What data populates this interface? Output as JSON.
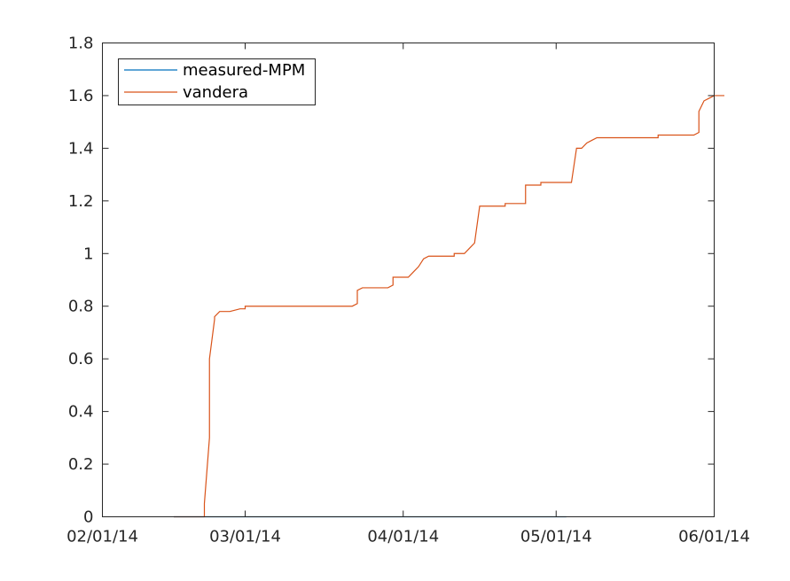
{
  "chart_data": {
    "type": "line",
    "title": "",
    "xlabel": "",
    "ylabel": "",
    "xlim": [
      "02/01/14",
      "06/01/14"
    ],
    "ylim": [
      0,
      1.8
    ],
    "x_ticks": [
      "02/01/14",
      "03/01/14",
      "04/01/14",
      "05/01/14",
      "06/01/14"
    ],
    "y_ticks": [
      "0",
      "0.2",
      "0.4",
      "0.6",
      "0.8",
      "1",
      "1.2",
      "1.4",
      "1.6",
      "1.8"
    ],
    "grid": false,
    "legend": {
      "location": "top-left",
      "entries": [
        "measured-MPM",
        "vandera"
      ]
    },
    "series": [
      {
        "name": "measured-MPM",
        "color": "#0072BD",
        "points": [
          [
            "02/15/14",
            0
          ],
          [
            "05/03/14",
            0
          ]
        ]
      },
      {
        "name": "vandera",
        "color": "#D95319",
        "points": [
          [
            "02/15/14",
            0
          ],
          [
            "02/21/14",
            0
          ],
          [
            "02/21/14",
            0.05
          ],
          [
            "02/22/14",
            0.3
          ],
          [
            "02/22/14",
            0.6
          ],
          [
            "02/23/14",
            0.75
          ],
          [
            "02/23/14",
            0.76
          ],
          [
            "02/24/14",
            0.78
          ],
          [
            "02/26/14",
            0.78
          ],
          [
            "02/28/14",
            0.79
          ],
          [
            "03/01/14",
            0.79
          ],
          [
            "03/01/14",
            0.8
          ],
          [
            "03/22/14",
            0.8
          ],
          [
            "03/23/14",
            0.81
          ],
          [
            "03/23/14",
            0.86
          ],
          [
            "03/24/14",
            0.87
          ],
          [
            "03/29/14",
            0.87
          ],
          [
            "03/30/14",
            0.88
          ],
          [
            "03/30/14",
            0.91
          ],
          [
            "03/31/14",
            0.91
          ],
          [
            "04/02/14",
            0.91
          ],
          [
            "04/03/14",
            0.93
          ],
          [
            "04/04/14",
            0.95
          ],
          [
            "04/05/14",
            0.98
          ],
          [
            "04/06/14",
            0.99
          ],
          [
            "04/11/14",
            0.99
          ],
          [
            "04/11/14",
            1.0
          ],
          [
            "04/13/14",
            1.0
          ],
          [
            "04/14/14",
            1.02
          ],
          [
            "04/15/14",
            1.04
          ],
          [
            "04/16/14",
            1.18
          ],
          [
            "04/21/14",
            1.18
          ],
          [
            "04/21/14",
            1.19
          ],
          [
            "04/25/14",
            1.19
          ],
          [
            "04/25/14",
            1.26
          ],
          [
            "04/28/14",
            1.26
          ],
          [
            "04/28/14",
            1.27
          ],
          [
            "05/04/14",
            1.27
          ],
          [
            "05/05/14",
            1.4
          ],
          [
            "05/06/14",
            1.4
          ],
          [
            "05/07/14",
            1.42
          ],
          [
            "05/08/14",
            1.43
          ],
          [
            "05/09/14",
            1.44
          ],
          [
            "05/21/14",
            1.44
          ],
          [
            "05/21/14",
            1.45
          ],
          [
            "05/28/14",
            1.45
          ],
          [
            "05/29/14",
            1.46
          ],
          [
            "05/29/14",
            1.54
          ],
          [
            "05/30/14",
            1.58
          ],
          [
            "05/31/14",
            1.59
          ],
          [
            "06/01/14",
            1.6
          ],
          [
            "06/03/14",
            1.6
          ]
        ]
      }
    ]
  }
}
